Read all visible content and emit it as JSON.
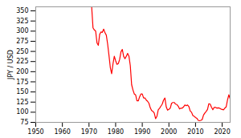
{
  "chart_data": {
    "type": "line",
    "ylabel": "JPY / USD",
    "color": "#ff0000",
    "xlim": [
      1950,
      2023
    ],
    "ylim": [
      75,
      360
    ],
    "xticks": [
      1950,
      1960,
      1970,
      1980,
      1990,
      2000,
      2010,
      2020
    ],
    "yticks": [
      75,
      100,
      125,
      150,
      175,
      200,
      225,
      250,
      275,
      300,
      325,
      350
    ],
    "grid": false,
    "x": [
      1950,
      1951,
      1952,
      1953,
      1954,
      1955,
      1956,
      1957,
      1958,
      1959,
      1960,
      1961,
      1962,
      1963,
      1964,
      1965,
      1966,
      1967,
      1968,
      1969,
      1970,
      1971,
      1971.5,
      1972,
      1972.5,
      1973,
      1973.5,
      1974,
      1974.5,
      1975,
      1975.5,
      1976,
      1976.5,
      1977,
      1977.5,
      1978,
      1978.5,
      1979,
      1979.5,
      1980,
      1980.5,
      1981,
      1981.5,
      1982,
      1982.5,
      1983,
      1983.5,
      1984,
      1984.5,
      1985,
      1985.5,
      1986,
      1986.5,
      1987,
      1987.5,
      1988,
      1988.5,
      1989,
      1989.5,
      1990,
      1990.5,
      1991,
      1991.5,
      1992,
      1992.5,
      1993,
      1993.5,
      1994,
      1994.5,
      1995,
      1995.5,
      1996,
      1996.5,
      1997,
      1997.5,
      1998,
      1998.5,
      1999,
      1999.5,
      2000,
      2000.5,
      2001,
      2001.5,
      2002,
      2002.5,
      2003,
      2003.5,
      2004,
      2004.5,
      2005,
      2005.5,
      2006,
      2006.5,
      2007,
      2007.5,
      2008,
      2008.5,
      2009,
      2009.5,
      2010,
      2010.5,
      2011,
      2011.5,
      2012,
      2012.5,
      2013,
      2013.5,
      2014,
      2014.5,
      2015,
      2015.5,
      2016,
      2016.5,
      2017,
      2017.5,
      2018,
      2018.5,
      2019,
      2019.5,
      2020,
      2020.5,
      2021,
      2021.5,
      2022,
      2022.5,
      2023
    ],
    "values": [
      360,
      360,
      360,
      360,
      360,
      360,
      360,
      360,
      360,
      360,
      360,
      360,
      360,
      360,
      360,
      360,
      360,
      360,
      360,
      360,
      360,
      360,
      308,
      303,
      300,
      271,
      265,
      292,
      298,
      297,
      305,
      296,
      290,
      268,
      240,
      210,
      195,
      219,
      238,
      227,
      218,
      220,
      230,
      249,
      255,
      238,
      232,
      238,
      245,
      238,
      215,
      168,
      155,
      145,
      143,
      128,
      128,
      138,
      145,
      145,
      135,
      135,
      130,
      127,
      122,
      111,
      104,
      102,
      98,
      84,
      90,
      106,
      110,
      115,
      120,
      130,
      135,
      113,
      105,
      107,
      110,
      122,
      124,
      124,
      120,
      119,
      115,
      108,
      110,
      110,
      113,
      118,
      116,
      118,
      114,
      103,
      100,
      92,
      90,
      87,
      85,
      80,
      79,
      80,
      82,
      93,
      98,
      102,
      107,
      121,
      120,
      112,
      106,
      112,
      112,
      110,
      111,
      110,
      108,
      107,
      106,
      110,
      113,
      130,
      143,
      133
    ]
  }
}
